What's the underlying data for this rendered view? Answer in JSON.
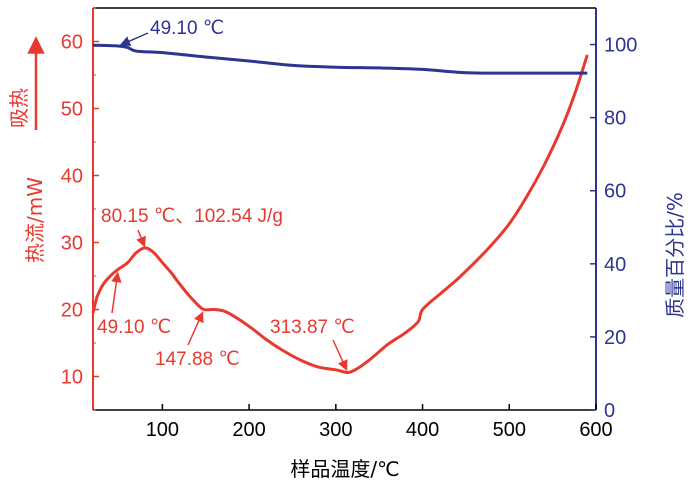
{
  "chart_data": {
    "type": "line",
    "x_axis": {
      "label": "样品温度/℃",
      "range": [
        20,
        600
      ],
      "ticks": [
        100,
        200,
        300,
        400,
        500,
        600
      ]
    },
    "y_left": {
      "label": "热流/mW",
      "direction_label": "吸热",
      "range": [
        5,
        65
      ],
      "ticks": [
        10,
        20,
        30,
        40,
        50,
        60
      ]
    },
    "y_right": {
      "label": "质量百分比/%",
      "range": [
        0,
        110
      ],
      "ticks": [
        0,
        20,
        40,
        60,
        80,
        100
      ]
    },
    "series": [
      {
        "name": "热流",
        "axis": "left",
        "color": "#e8392f",
        "points": [
          [
            20,
            19.5
          ],
          [
            25,
            22
          ],
          [
            32,
            23.8
          ],
          [
            40,
            25
          ],
          [
            49.1,
            26
          ],
          [
            60,
            27
          ],
          [
            70,
            28.5
          ],
          [
            80.15,
            29.2
          ],
          [
            90,
            28.5
          ],
          [
            100,
            27
          ],
          [
            110,
            25.5
          ],
          [
            120,
            23.8
          ],
          [
            130,
            22.2
          ],
          [
            140,
            20.8
          ],
          [
            147.88,
            20
          ],
          [
            160,
            20
          ],
          [
            170,
            19.8
          ],
          [
            180,
            19.2
          ],
          [
            200,
            17.5
          ],
          [
            220,
            15.5
          ],
          [
            240,
            13.8
          ],
          [
            260,
            12.4
          ],
          [
            280,
            11.4
          ],
          [
            300,
            11
          ],
          [
            313.87,
            10.6
          ],
          [
            325,
            11.2
          ],
          [
            340,
            12.6
          ],
          [
            360,
            14.8
          ],
          [
            380,
            16.5
          ],
          [
            395,
            18.2
          ],
          [
            400,
            20
          ],
          [
            420,
            22.3
          ],
          [
            440,
            24.5
          ],
          [
            460,
            27
          ],
          [
            480,
            29.7
          ],
          [
            500,
            32.8
          ],
          [
            520,
            36.8
          ],
          [
            540,
            41.5
          ],
          [
            560,
            47
          ],
          [
            575,
            52
          ],
          [
            590,
            58
          ]
        ]
      },
      {
        "name": "质量百分比",
        "axis": "right",
        "color": "#2c3590",
        "points": [
          [
            20,
            99.8
          ],
          [
            40,
            99.7
          ],
          [
            49.1,
            99.6
          ],
          [
            60,
            99.2
          ],
          [
            70,
            98.2
          ],
          [
            100,
            97.8
          ],
          [
            150,
            96.6
          ],
          [
            200,
            95.5
          ],
          [
            250,
            94.3
          ],
          [
            300,
            93.8
          ],
          [
            350,
            93.6
          ],
          [
            400,
            93.2
          ],
          [
            450,
            92.3
          ],
          [
            500,
            92.2
          ],
          [
            590,
            92.2
          ]
        ]
      }
    ],
    "annotations": [
      {
        "text": "49.10 ℃",
        "target": [
          49.1,
          99.6
        ],
        "axis": "right",
        "color": "#2c3590"
      },
      {
        "text": "80.15 ℃、102.54 J/g",
        "target": [
          80.15,
          29.2
        ],
        "axis": "left",
        "color": "#e8392f"
      },
      {
        "text": "49.10 ℃",
        "target": [
          49.1,
          26
        ],
        "axis": "left",
        "color": "#e8392f"
      },
      {
        "text": "147.88 ℃",
        "target": [
          147.88,
          20
        ],
        "axis": "left",
        "color": "#e8392f"
      },
      {
        "text": "313.87 ℃",
        "target": [
          313.87,
          10.6
        ],
        "axis": "left",
        "color": "#e8392f"
      }
    ]
  }
}
